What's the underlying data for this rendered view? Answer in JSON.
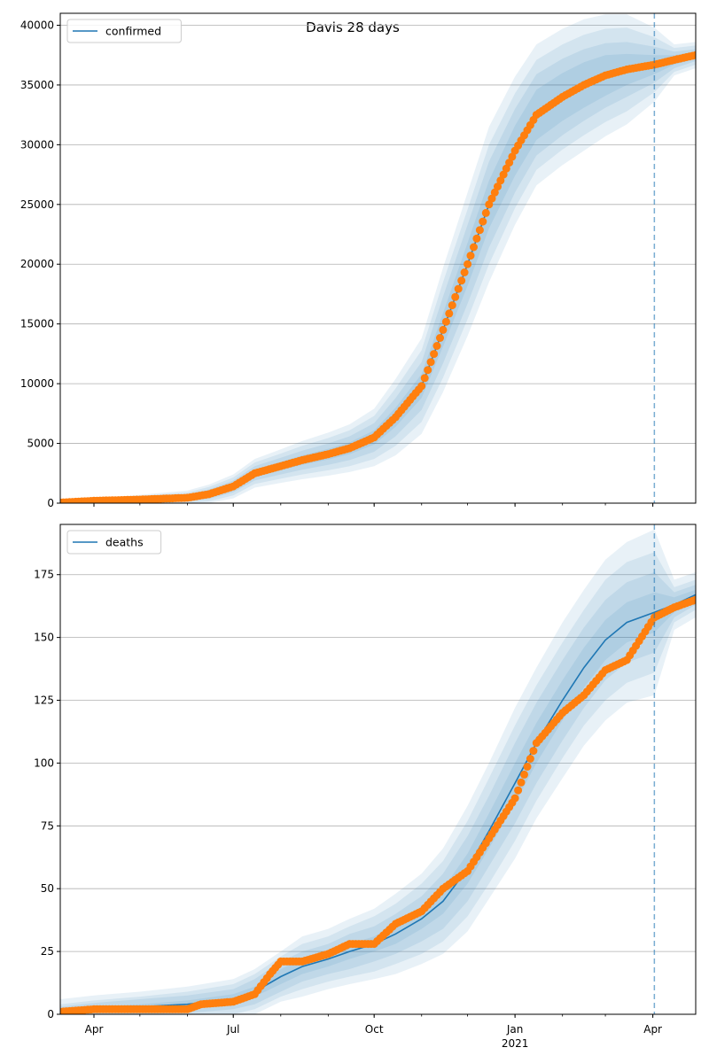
{
  "figure": {
    "title": "Davis 28 days"
  },
  "colors": {
    "line": "#1f77b4",
    "points": "#ff7f0e",
    "band": "#1f77b4",
    "grid": "#b0b0b0",
    "vline": "#1f77b4"
  },
  "chart_data": [
    {
      "type": "line",
      "panel": "top",
      "title": "Davis 28 days",
      "xlabel": "",
      "ylabel": "",
      "legend": {
        "entries": [
          "confirmed"
        ],
        "placement": "upper left"
      },
      "grid": "horizontal",
      "x_range": [
        "2020-03-10",
        "2021-04-29"
      ],
      "ylim": [
        0,
        41000
      ],
      "y_ticks": [
        0,
        5000,
        10000,
        15000,
        20000,
        25000,
        30000,
        35000,
        40000
      ],
      "x_ticks": [
        {
          "date": "2020-04-01",
          "label": "Apr",
          "sublabel": ""
        },
        {
          "date": "2020-07-01",
          "label": "Jul",
          "sublabel": ""
        },
        {
          "date": "2020-10-01",
          "label": "Oct",
          "sublabel": ""
        },
        {
          "date": "2021-01-01",
          "label": "Jan",
          "sublabel": "2021"
        },
        {
          "date": "2021-04-01",
          "label": "Apr",
          "sublabel": ""
        }
      ],
      "show_x_labels": false,
      "forecast_start": "2021-04-02",
      "series": [
        {
          "name": "confirmed",
          "x": [
            "2020-03-10",
            "2020-04-01",
            "2020-05-01",
            "2020-06-01",
            "2020-06-15",
            "2020-07-01",
            "2020-07-15",
            "2020-08-01",
            "2020-08-15",
            "2020-09-01",
            "2020-09-15",
            "2020-10-01",
            "2020-10-15",
            "2020-11-01",
            "2020-11-15",
            "2020-12-01",
            "2020-12-15",
            "2021-01-01",
            "2021-01-15",
            "2021-02-01",
            "2021-02-15",
            "2021-03-01",
            "2021-03-15",
            "2021-04-02",
            "2021-04-15",
            "2021-04-29"
          ],
          "y": [
            50,
            200,
            300,
            450,
            750,
            1400,
            2500,
            3100,
            3600,
            4100,
            4600,
            5500,
            7200,
            9800,
            14500,
            20000,
            25000,
            29500,
            32500,
            34000,
            35000,
            35800,
            36300,
            36700,
            37100,
            37500
          ],
          "band_widths": [
            [
              30,
              40,
              100,
              150,
              200,
              250,
              300,
              350,
              400,
              450,
              500,
              600,
              800,
              1000,
              1400,
              1800,
              2000,
              2100,
              2100,
              2000,
              1900,
              1700,
              1300,
              800,
              400,
              300
            ],
            [
              60,
              80,
              200,
              300,
              400,
              500,
              600,
              700,
              800,
              900,
              1000,
              1200,
              1600,
              2000,
              2800,
              3300,
              3600,
              3500,
              3400,
              3200,
              3000,
              2700,
              2300,
              1500,
              700,
              500
            ],
            [
              90,
              120,
              300,
              450,
              600,
              750,
              900,
              1050,
              1200,
              1350,
              1500,
              1800,
              2400,
              3000,
              4000,
              4600,
              5000,
              4800,
              4600,
              4400,
              4200,
              3900,
              3500,
              2300,
              1000,
              800
            ],
            [
              120,
              160,
              400,
              600,
              800,
              1000,
              1200,
              1400,
              1600,
              1800,
              2000,
              2400,
              3200,
              4000,
              5200,
              6000,
              6500,
              6200,
              5900,
              5700,
              5500,
              5100,
              4600,
              3100,
              1300,
              1100
            ]
          ]
        }
      ],
      "observed": {
        "name": "confirmed observed",
        "x": [
          "2020-03-10",
          "2020-04-01",
          "2020-05-01",
          "2020-06-01",
          "2020-06-15",
          "2020-07-01",
          "2020-07-15",
          "2020-08-01",
          "2020-08-15",
          "2020-09-01",
          "2020-09-15",
          "2020-10-01",
          "2020-10-15",
          "2020-11-01",
          "2020-11-15",
          "2020-12-01",
          "2020-12-15",
          "2021-01-01",
          "2021-01-15",
          "2021-02-01",
          "2021-02-15",
          "2021-03-01",
          "2021-03-15",
          "2021-04-02",
          "2021-04-15",
          "2021-04-29"
        ],
        "y": [
          50,
          200,
          300,
          450,
          750,
          1400,
          2500,
          3100,
          3600,
          4100,
          4600,
          5500,
          7200,
          9800,
          14500,
          20000,
          25000,
          29500,
          32500,
          34000,
          35000,
          35800,
          36300,
          36700,
          37100,
          37500
        ]
      }
    },
    {
      "type": "line",
      "panel": "bottom",
      "title": "",
      "xlabel": "",
      "ylabel": "",
      "legend": {
        "entries": [
          "deaths"
        ],
        "placement": "upper left"
      },
      "grid": "horizontal",
      "x_range": [
        "2020-03-10",
        "2021-04-29"
      ],
      "ylim": [
        0,
        195
      ],
      "y_ticks": [
        0,
        25,
        50,
        75,
        100,
        125,
        150,
        175
      ],
      "x_ticks": [
        {
          "date": "2020-04-01",
          "label": "Apr",
          "sublabel": ""
        },
        {
          "date": "2020-07-01",
          "label": "Jul",
          "sublabel": ""
        },
        {
          "date": "2020-10-01",
          "label": "Oct",
          "sublabel": ""
        },
        {
          "date": "2021-01-01",
          "label": "Jan",
          "sublabel": "2021"
        },
        {
          "date": "2021-04-01",
          "label": "Apr",
          "sublabel": ""
        }
      ],
      "show_x_labels": true,
      "forecast_start": "2021-04-02",
      "series": [
        {
          "name": "deaths",
          "x": [
            "2020-03-10",
            "2020-04-01",
            "2020-05-01",
            "2020-06-01",
            "2020-07-01",
            "2020-07-15",
            "2020-08-01",
            "2020-08-15",
            "2020-09-01",
            "2020-09-15",
            "2020-10-01",
            "2020-10-15",
            "2020-11-01",
            "2020-11-15",
            "2020-12-01",
            "2020-12-15",
            "2021-01-01",
            "2021-01-15",
            "2021-02-01",
            "2021-02-15",
            "2021-03-01",
            "2021-03-15",
            "2021-04-02",
            "2021-04-15",
            "2021-04-29"
          ],
          "y": [
            1,
            2,
            3,
            4,
            6,
            9,
            15,
            19,
            22,
            25,
            28,
            32,
            38,
            45,
            58,
            73,
            92,
            108,
            125,
            138,
            149,
            156,
            160,
            163,
            167
          ],
          "band_widths": [
            [
              1,
              1,
              1,
              1.5,
              2,
              2,
              3,
              3,
              3,
              3,
              3,
              4,
              4,
              5,
              6,
              7,
              8,
              8,
              8,
              8,
              8,
              8,
              8,
              3,
              2
            ],
            [
              2,
              2.5,
              3,
              3.5,
              4,
              5,
              6,
              6,
              6,
              7,
              7,
              8,
              9,
              11,
              13,
              14,
              16,
              16,
              16,
              16,
              16,
              16,
              16,
              5,
              4
            ],
            [
              3,
              3.5,
              4,
              5,
              6,
              7,
              8,
              9,
              9,
              10,
              11,
              12,
              14,
              16,
              19,
              21,
              23,
              23,
              23,
              23,
              24,
              24,
              24,
              7,
              6
            ],
            [
              5,
              5.5,
              6,
              7,
              8,
              9,
              10,
              12,
              12,
              13,
              14,
              16,
              18,
              21,
              25,
              27,
              30,
              30,
              31,
              31,
              32,
              32,
              33,
              10,
              9
            ]
          ]
        }
      ],
      "observed": {
        "name": "deaths observed",
        "x": [
          "2020-03-10",
          "2020-04-01",
          "2020-05-01",
          "2020-06-01",
          "2020-06-10",
          "2020-07-01",
          "2020-07-15",
          "2020-07-25",
          "2020-08-01",
          "2020-08-15",
          "2020-09-01",
          "2020-09-15",
          "2020-10-01",
          "2020-10-15",
          "2020-11-01",
          "2020-11-15",
          "2020-12-01",
          "2020-12-15",
          "2021-01-01",
          "2021-01-15",
          "2021-02-01",
          "2021-02-15",
          "2021-03-01",
          "2021-03-15",
          "2021-04-02",
          "2021-04-15",
          "2021-04-29"
        ],
        "y": [
          1,
          2,
          2,
          2,
          4,
          5,
          8,
          16,
          21,
          21,
          24,
          28,
          28,
          36,
          41,
          50,
          57,
          70,
          86,
          108,
          120,
          127,
          137,
          141,
          158,
          162,
          165
        ]
      }
    }
  ]
}
